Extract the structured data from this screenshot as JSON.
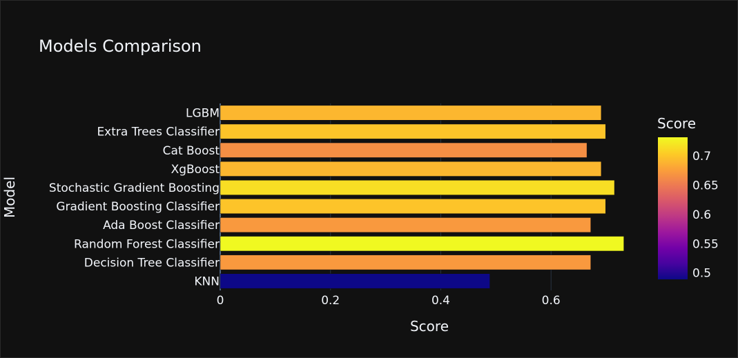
{
  "chart_data": {
    "type": "bar",
    "orientation": "horizontal",
    "title": "Models Comparison",
    "xlabel": "Score",
    "ylabel": "Model",
    "xlim": [
      0,
      0.75
    ],
    "xticks": [
      0,
      0.2,
      0.4,
      0.6
    ],
    "grid": true,
    "categories": [
      "KNN",
      "Decision Tree Classifier",
      "Random Forest Classifier",
      "Ada Boost Classifier",
      "Gradient Boosting Classifier",
      "Stochastic Gradient Boosting",
      "XgBoost",
      "Cat Boost",
      "Extra Trees Classifier",
      "LGBM"
    ],
    "values": [
      0.489,
      0.672,
      0.732,
      0.672,
      0.699,
      0.715,
      0.691,
      0.665,
      0.699,
      0.691
    ],
    "colorscale": "Plasma",
    "colorbar": {
      "title": "Score",
      "range": [
        0.489,
        0.732
      ],
      "ticks": [
        0.5,
        0.55,
        0.6,
        0.65,
        0.7
      ],
      "tick_labels": [
        "0.5",
        "0.55",
        "0.6",
        "0.65",
        "0.7"
      ]
    }
  }
}
